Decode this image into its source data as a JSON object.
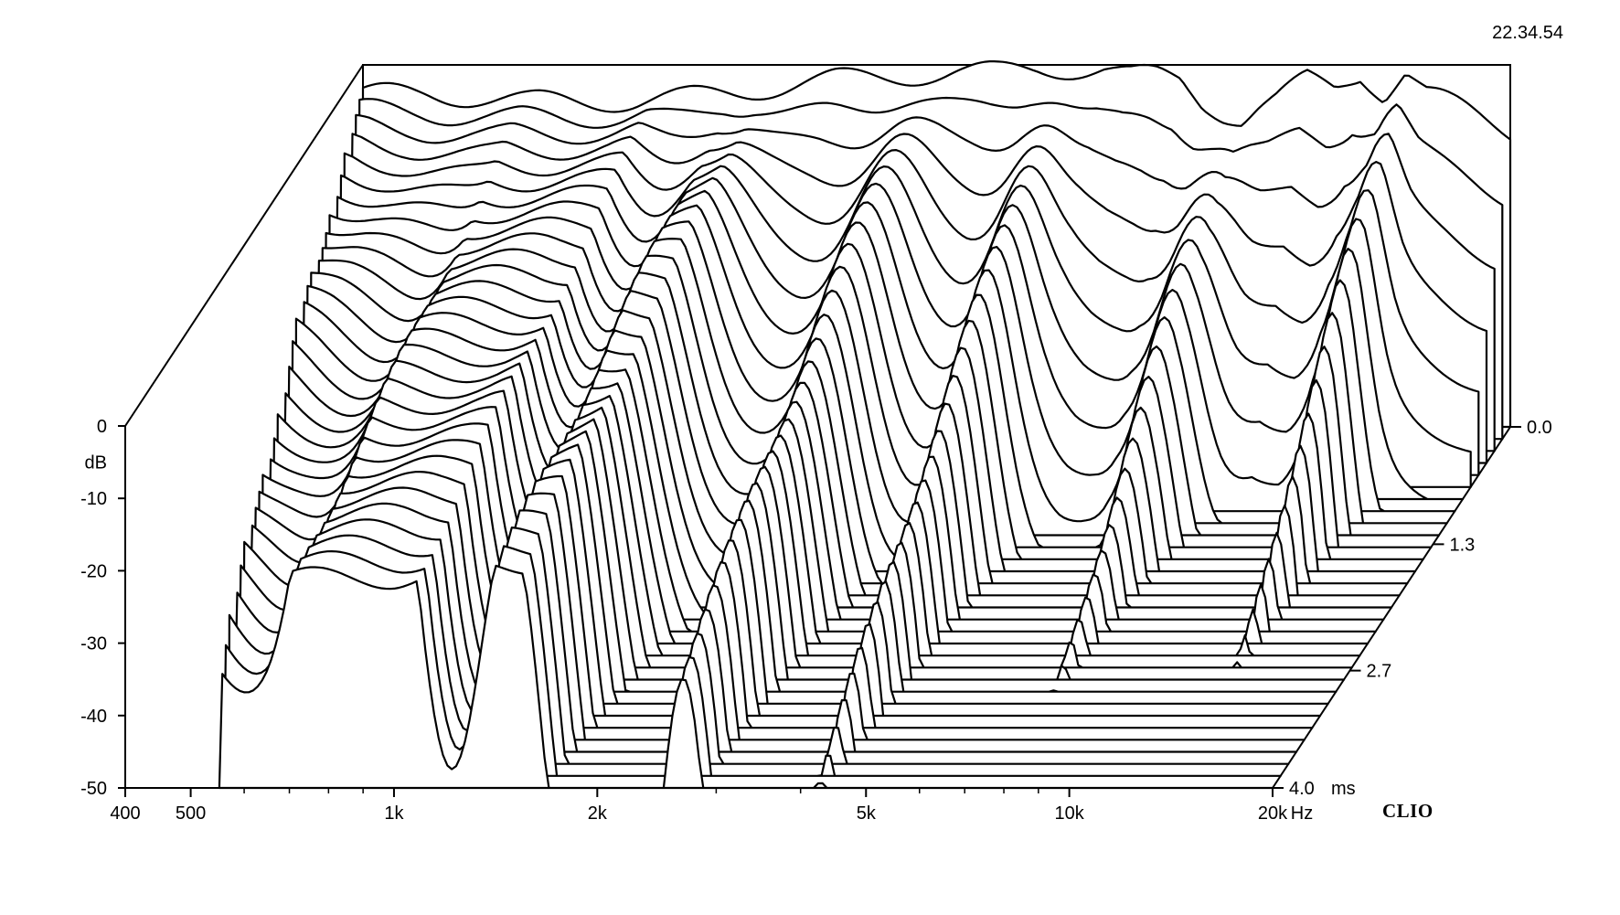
{
  "timestamp": "22.34.54",
  "brand": "CLIO",
  "chart_data": {
    "type": "waterfall",
    "title": "",
    "xlabel": "Hz",
    "ylabel": "dB",
    "zlabel": "ms",
    "x_scale": "log",
    "xlim": [
      400,
      20000
    ],
    "ylim": [
      -50,
      0
    ],
    "zlim": [
      0.0,
      4.0
    ],
    "x_ticks": [
      {
        "value": 400,
        "label": "400"
      },
      {
        "value": 500,
        "label": "500"
      },
      {
        "value": 1000,
        "label": "1k"
      },
      {
        "value": 2000,
        "label": "2k"
      },
      {
        "value": 5000,
        "label": "5k"
      },
      {
        "value": 10000,
        "label": "10k"
      },
      {
        "value": 20000,
        "label": "20k"
      }
    ],
    "x_minor_ticks": [
      600,
      700,
      800,
      900,
      3000,
      4000,
      6000,
      7000,
      8000,
      9000
    ],
    "y_ticks": [
      {
        "value": 0,
        "label": "0"
      },
      {
        "value": -10,
        "label": "-10"
      },
      {
        "value": -20,
        "label": "-20"
      },
      {
        "value": -30,
        "label": "-30"
      },
      {
        "value": -40,
        "label": "-40"
      },
      {
        "value": -50,
        "label": "-50"
      }
    ],
    "z_ticks": [
      {
        "value": 0.0,
        "label": "0.0"
      },
      {
        "value": 1.3,
        "label": "1.3"
      },
      {
        "value": 2.7,
        "label": "2.7"
      },
      {
        "value": 4.0,
        "label": "4.0"
      }
    ],
    "slices": 31,
    "slice_start_ms": 0.0,
    "slice_end_ms": 4.0,
    "initial_response": {
      "freq": [
        400,
        500,
        600,
        700,
        800,
        900,
        1000,
        1200,
        1500,
        1800,
        2000,
        2500,
        3000,
        3500,
        4000,
        4500,
        5000,
        5500,
        6000,
        6500,
        7000,
        7500,
        8000,
        8500,
        9000,
        10000,
        11000,
        12000,
        13000,
        14000,
        15000,
        16000,
        17000,
        18000,
        19000,
        20000
      ],
      "db": [
        -4.0,
        -4.0,
        -4.5,
        -5.0,
        -5.0,
        -5.0,
        -5.0,
        -4.5,
        -3.5,
        -2.5,
        -2.0,
        -1.5,
        -1.0,
        -1.0,
        -0.5,
        -0.5,
        -0.5,
        -1.5,
        -1.5,
        -2.0,
        -5.0,
        -6.5,
        -7.5,
        -6.0,
        -5.0,
        -2.0,
        -3.0,
        -1.0,
        -4.0,
        -1.0,
        -4.0,
        -5.0,
        -6.0,
        -7.0,
        -8.0,
        -9.0
      ]
    }
  }
}
